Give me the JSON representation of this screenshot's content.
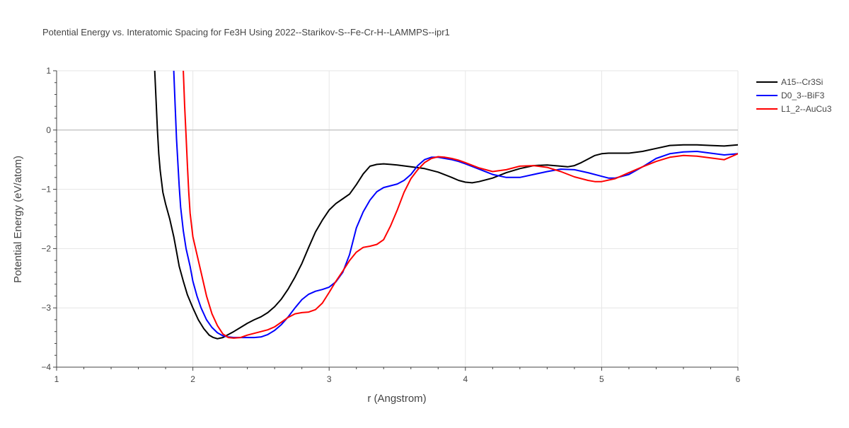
{
  "chart_data": {
    "type": "line",
    "title": "Potential Energy vs. Interatomic Spacing for Fe3H Using 2022--Starikov-S--Fe-Cr-H--LAMMPS--ipr1",
    "xlabel": "r (Angstrom)",
    "ylabel": "Potential Energy (eV/atom)",
    "xlim": [
      1,
      6
    ],
    "ylim": [
      -4,
      1
    ],
    "xticks": [
      1,
      2,
      3,
      4,
      5,
      6
    ],
    "xtick_labels": [
      "1",
      "2",
      "3",
      "4",
      "5",
      "6"
    ],
    "yticks": [
      1,
      0,
      -1,
      -2,
      -3,
      -4
    ],
    "ytick_labels": [
      "1",
      "0",
      "−1",
      "−2",
      "−3",
      "−4"
    ],
    "grid": true,
    "legend_position": "top-right",
    "series": [
      {
        "name": "A15--Cr3Si",
        "color": "#000000",
        "x": [
          1.72,
          1.73,
          1.74,
          1.75,
          1.76,
          1.78,
          1.8,
          1.83,
          1.86,
          1.88,
          1.9,
          1.93,
          1.96,
          2.0,
          2.04,
          2.08,
          2.12,
          2.15,
          2.18,
          2.22,
          2.26,
          2.3,
          2.35,
          2.4,
          2.45,
          2.5,
          2.55,
          2.6,
          2.65,
          2.7,
          2.75,
          2.8,
          2.85,
          2.9,
          2.95,
          3.0,
          3.05,
          3.1,
          3.15,
          3.2,
          3.25,
          3.3,
          3.35,
          3.4,
          3.45,
          3.5,
          3.6,
          3.7,
          3.8,
          3.9,
          3.95,
          4.0,
          4.05,
          4.1,
          4.2,
          4.3,
          4.4,
          4.5,
          4.6,
          4.7,
          4.75,
          4.8,
          4.85,
          4.9,
          4.95,
          5.0,
          5.05,
          5.1,
          5.2,
          5.3,
          5.4,
          5.5,
          5.6,
          5.7,
          5.8,
          5.9,
          6.0
        ],
        "y": [
          1.0,
          0.5,
          0.0,
          -0.4,
          -0.68,
          -1.05,
          -1.25,
          -1.5,
          -1.8,
          -2.05,
          -2.3,
          -2.55,
          -2.78,
          -3.0,
          -3.2,
          -3.35,
          -3.46,
          -3.5,
          -3.52,
          -3.5,
          -3.45,
          -3.4,
          -3.33,
          -3.26,
          -3.2,
          -3.15,
          -3.08,
          -2.98,
          -2.85,
          -2.68,
          -2.48,
          -2.25,
          -1.98,
          -1.72,
          -1.52,
          -1.35,
          -1.24,
          -1.16,
          -1.08,
          -0.92,
          -0.74,
          -0.61,
          -0.58,
          -0.57,
          -0.58,
          -0.59,
          -0.62,
          -0.65,
          -0.71,
          -0.8,
          -0.85,
          -0.88,
          -0.89,
          -0.87,
          -0.81,
          -0.72,
          -0.65,
          -0.6,
          -0.59,
          -0.61,
          -0.62,
          -0.6,
          -0.55,
          -0.49,
          -0.43,
          -0.4,
          -0.39,
          -0.39,
          -0.39,
          -0.36,
          -0.31,
          -0.26,
          -0.25,
          -0.25,
          -0.26,
          -0.27,
          -0.25
        ]
      },
      {
        "name": "D0_3--BiF3",
        "color": "#0000ff",
        "x": [
          1.86,
          1.87,
          1.88,
          1.89,
          1.9,
          1.91,
          1.93,
          1.95,
          1.98,
          2.0,
          2.03,
          2.06,
          2.1,
          2.14,
          2.18,
          2.22,
          2.26,
          2.3,
          2.35,
          2.4,
          2.45,
          2.5,
          2.55,
          2.6,
          2.65,
          2.7,
          2.75,
          2.8,
          2.85,
          2.9,
          2.95,
          3.0,
          3.05,
          3.1,
          3.15,
          3.2,
          3.25,
          3.3,
          3.35,
          3.4,
          3.45,
          3.5,
          3.55,
          3.6,
          3.65,
          3.7,
          3.75,
          3.8,
          3.85,
          3.9,
          3.95,
          4.0,
          4.1,
          4.2,
          4.3,
          4.4,
          4.5,
          4.6,
          4.7,
          4.8,
          4.9,
          5.0,
          5.05,
          5.1,
          5.2,
          5.3,
          5.4,
          5.5,
          5.6,
          5.7,
          5.8,
          5.9,
          6.0
        ],
        "y": [
          1.0,
          0.4,
          -0.15,
          -0.55,
          -0.95,
          -1.3,
          -1.7,
          -2.0,
          -2.3,
          -2.55,
          -2.8,
          -3.0,
          -3.2,
          -3.33,
          -3.42,
          -3.47,
          -3.49,
          -3.5,
          -3.5,
          -3.5,
          -3.5,
          -3.49,
          -3.45,
          -3.38,
          -3.28,
          -3.15,
          -3.0,
          -2.86,
          -2.77,
          -2.72,
          -2.69,
          -2.65,
          -2.56,
          -2.4,
          -2.1,
          -1.65,
          -1.38,
          -1.18,
          -1.04,
          -0.97,
          -0.94,
          -0.91,
          -0.85,
          -0.75,
          -0.6,
          -0.5,
          -0.46,
          -0.46,
          -0.48,
          -0.5,
          -0.53,
          -0.57,
          -0.66,
          -0.75,
          -0.8,
          -0.8,
          -0.75,
          -0.7,
          -0.66,
          -0.67,
          -0.72,
          -0.78,
          -0.81,
          -0.81,
          -0.75,
          -0.62,
          -0.48,
          -0.4,
          -0.37,
          -0.36,
          -0.39,
          -0.42,
          -0.4
        ]
      },
      {
        "name": "L1_2--AuCu3",
        "color": "#ff0000",
        "x": [
          1.93,
          1.94,
          1.95,
          1.96,
          1.97,
          1.98,
          2.0,
          2.03,
          2.06,
          2.1,
          2.14,
          2.18,
          2.22,
          2.26,
          2.3,
          2.35,
          2.4,
          2.45,
          2.5,
          2.55,
          2.6,
          2.65,
          2.7,
          2.75,
          2.8,
          2.85,
          2.9,
          2.95,
          3.0,
          3.05,
          3.1,
          3.15,
          3.2,
          3.25,
          3.3,
          3.35,
          3.4,
          3.45,
          3.5,
          3.55,
          3.6,
          3.65,
          3.7,
          3.75,
          3.8,
          3.85,
          3.9,
          3.95,
          4.0,
          4.1,
          4.2,
          4.3,
          4.4,
          4.5,
          4.6,
          4.7,
          4.8,
          4.9,
          4.95,
          5.0,
          5.1,
          5.2,
          5.3,
          5.4,
          5.5,
          5.6,
          5.7,
          5.8,
          5.9,
          6.0
        ],
        "y": [
          1.0,
          0.4,
          -0.1,
          -0.6,
          -1.05,
          -1.4,
          -1.8,
          -2.1,
          -2.4,
          -2.8,
          -3.1,
          -3.3,
          -3.44,
          -3.5,
          -3.51,
          -3.5,
          -3.46,
          -3.43,
          -3.4,
          -3.37,
          -3.32,
          -3.24,
          -3.16,
          -3.1,
          -3.08,
          -3.07,
          -3.03,
          -2.92,
          -2.74,
          -2.55,
          -2.38,
          -2.2,
          -2.06,
          -1.98,
          -1.96,
          -1.93,
          -1.85,
          -1.62,
          -1.35,
          -1.05,
          -0.82,
          -0.67,
          -0.55,
          -0.48,
          -0.45,
          -0.46,
          -0.48,
          -0.51,
          -0.55,
          -0.64,
          -0.7,
          -0.67,
          -0.61,
          -0.6,
          -0.63,
          -0.7,
          -0.79,
          -0.85,
          -0.87,
          -0.87,
          -0.82,
          -0.72,
          -0.62,
          -0.53,
          -0.46,
          -0.43,
          -0.44,
          -0.47,
          -0.5,
          -0.4
        ]
      }
    ]
  }
}
